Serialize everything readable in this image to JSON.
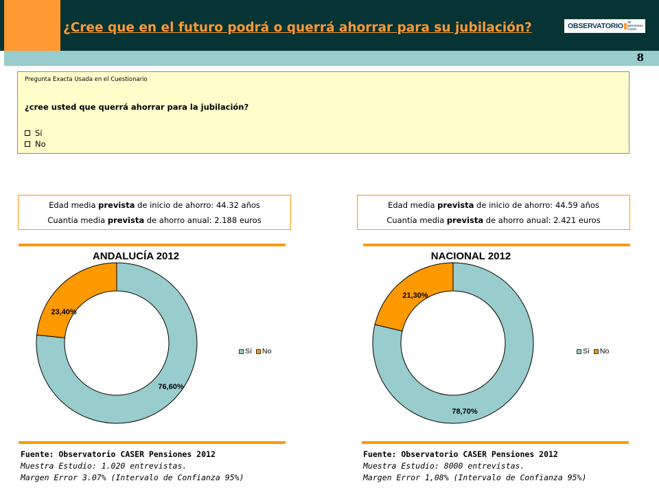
{
  "header": {
    "title": "¿Cree que en el futuro podrá o querrá ahorrar para su jubilación?",
    "logo_word": "OBSERVATORIO",
    "logo_small": "de pensiones Caser",
    "page_number": "8"
  },
  "question": {
    "caption": "Pregunta Exacta Usada en el Cuestionario",
    "text": "¿cree usted que querrá ahorrar para la jubilación?",
    "options": [
      "Sí",
      "No"
    ]
  },
  "panels": [
    {
      "stats": {
        "age_prefix": "Edad media ",
        "age_bold": "prevista",
        "age_suffix": " de inicio de ahorro: 44.32 años",
        "amount_prefix": "Cuantía media ",
        "amount_bold": "prevista",
        "amount_suffix": " de ahorro anual: 2.188 euros"
      },
      "source": {
        "fuente": "Fuente: Observatorio CASER Pensiones 2012",
        "muestra": "Muestra Estudio: 1.020 entrevistas.",
        "margen": "Margen Error 3.07% (Intervalo de Confianza 95%)"
      }
    },
    {
      "stats": {
        "age_prefix": "Edad media ",
        "age_bold": "prevista",
        "age_suffix": " de inicio de ahorro: 44.59 años",
        "amount_prefix": "Cuantía media ",
        "amount_bold": "prevista",
        "amount_suffix": " de ahorro anual: 2.421 euros"
      },
      "source": {
        "fuente": "Fuente: Observatorio CASER Pensiones 2012",
        "muestra": "Muestra Estudio: 8000 entrevistas.",
        "margen": "Margen Error 1,08% (Intervalo de Confianza 95%)"
      }
    }
  ],
  "chart_data": [
    {
      "type": "pie",
      "variant": "donut",
      "title": "ANDALUCÍA 2012",
      "categories": [
        "Sí",
        "No"
      ],
      "values": [
        76.6,
        23.4
      ],
      "labels": [
        "76,60%",
        "23,40%"
      ],
      "colors": [
        "#99cccc",
        "#ff9900"
      ],
      "legend": "right"
    },
    {
      "type": "pie",
      "variant": "donut",
      "title": "NACIONAL 2012",
      "categories": [
        "Sí",
        "No"
      ],
      "values": [
        78.7,
        21.3
      ],
      "labels": [
        "78,70%",
        "21,30%"
      ],
      "colors": [
        "#99cccc",
        "#ff9900"
      ],
      "legend": "right"
    }
  ],
  "colors": {
    "header_bg": "#063333",
    "accent_orange": "#ff9933",
    "teal_bar": "#99cccc",
    "question_bg": "#ffffcc"
  }
}
